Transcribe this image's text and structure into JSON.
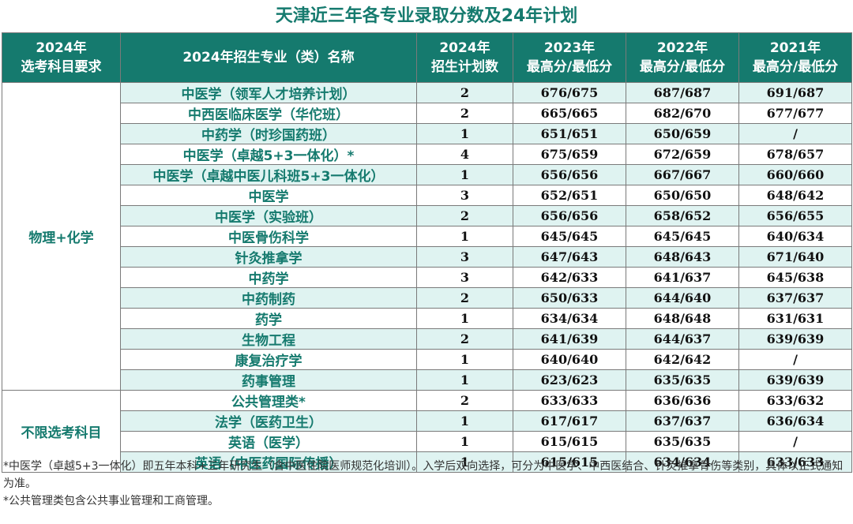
{
  "title": "天津近三年各专业录取分数及24年计划",
  "columns": {
    "subject_line1": "2024年",
    "subject_line2": "选考科目要求",
    "major": "2024年招生专业（类）名称",
    "plan_line1": "2024年",
    "plan_line2": "招生计划数",
    "y2023_line1": "2023年",
    "y2023_line2": "最高分/最低分",
    "y2022_line1": "2022年",
    "y2022_line2": "最高分/最低分",
    "y2021_line1": "2021年",
    "y2021_line2": "最高分/最低分"
  },
  "groups": [
    {
      "label": "物理+化学",
      "rows": [
        {
          "major": "中医学（领军人才培养计划）",
          "plan": "2",
          "y2023": "676/675",
          "y2022": "687/687",
          "y2021": "691/687"
        },
        {
          "major": "中西医临床医学（华佗班）",
          "plan": "2",
          "y2023": "665/665",
          "y2022": "682/670",
          "y2021": "677/677"
        },
        {
          "major": "中药学（时珍国药班）",
          "plan": "1",
          "y2023": "651/651",
          "y2022": "650/659",
          "y2021": "/"
        },
        {
          "major": "中医学（卓越5+3一体化）*",
          "plan": "4",
          "y2023": "675/659",
          "y2022": "672/659",
          "y2021": "678/657"
        },
        {
          "major": "中医学（卓越中医儿科班5+3一体化）",
          "plan": "1",
          "y2023": "656/656",
          "y2022": "667/667",
          "y2021": "660/660"
        },
        {
          "major": "中医学",
          "plan": "3",
          "y2023": "652/651",
          "y2022": "650/650",
          "y2021": "648/642"
        },
        {
          "major": "中医学（实验班）",
          "plan": "2",
          "y2023": "656/656",
          "y2022": "658/652",
          "y2021": "656/655"
        },
        {
          "major": "中医骨伤科学",
          "plan": "1",
          "y2023": "645/645",
          "y2022": "645/645",
          "y2021": "640/634"
        },
        {
          "major": "针灸推拿学",
          "plan": "3",
          "y2023": "647/643",
          "y2022": "648/643",
          "y2021": "671/640"
        },
        {
          "major": "中药学",
          "plan": "3",
          "y2023": "642/633",
          "y2022": "641/637",
          "y2021": "645/638"
        },
        {
          "major": "中药制药",
          "plan": "2",
          "y2023": "650/633",
          "y2022": "644/640",
          "y2021": "637/637"
        },
        {
          "major": "药学",
          "plan": "1",
          "y2023": "634/634",
          "y2022": "648/648",
          "y2021": "631/631"
        },
        {
          "major": "生物工程",
          "plan": "2",
          "y2023": "641/639",
          "y2022": "644/637",
          "y2021": "639/639"
        },
        {
          "major": "康复治疗学",
          "plan": "1",
          "y2023": "640/640",
          "y2022": "642/642",
          "y2021": "/"
        },
        {
          "major": "药事管理",
          "plan": "1",
          "y2023": "623/623",
          "y2022": "635/635",
          "y2021": "639/639"
        }
      ]
    },
    {
      "label": "不限选考科目",
      "rows": [
        {
          "major": "公共管理类*",
          "plan": "2",
          "y2023": "633/633",
          "y2022": "636/636",
          "y2021": "633/632"
        },
        {
          "major": "法学（医药卫生）",
          "plan": "1",
          "y2023": "617/617",
          "y2022": "637/637",
          "y2021": "636/634"
        },
        {
          "major": "英语（医学）",
          "plan": "1",
          "y2023": "615/615",
          "y2022": "635/635",
          "y2021": "/"
        },
        {
          "major": "英语（中医药国际传播）",
          "plan": "1",
          "y2023": "615/615",
          "y2022": "634/634",
          "y2021": "633/633"
        }
      ]
    }
  ],
  "notes": [
    "*中医学（卓越5+3一体化）即五年本科+三年研究生（含中医住院医师规范化培训）。入学后双向选择，可分为中医学、中西医结合、针灸推拿骨伤等类别，具体以正式通知为准。",
    "*公共管理类包含公共事业管理和工商管理。"
  ],
  "colors": {
    "header_bg": "#157a6e",
    "title_text": "#157a6e",
    "row_stripe": "#dff3f1"
  }
}
